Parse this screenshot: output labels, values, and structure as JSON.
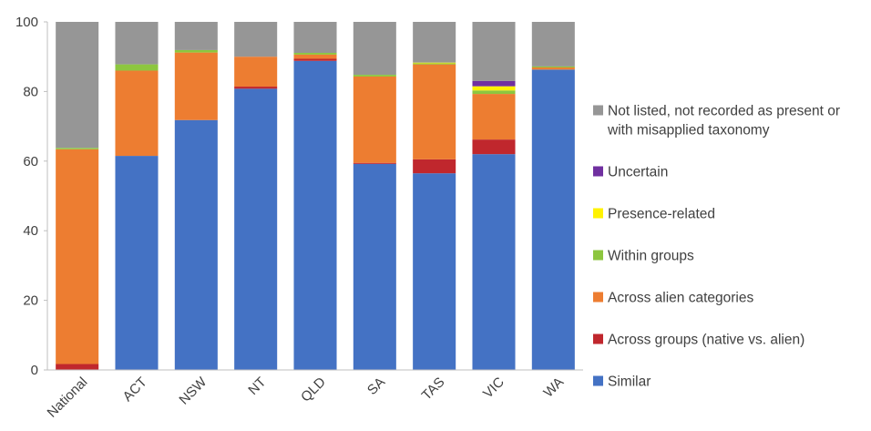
{
  "chart_data": {
    "type": "bar",
    "stacked": true,
    "categories": [
      "National",
      "ACT",
      "NSW",
      "NT",
      "QLD",
      "SA",
      "TAS",
      "VIC",
      "WA"
    ],
    "ylim": [
      0,
      100
    ],
    "yticks": [
      "0",
      "20",
      "40",
      "60",
      "80",
      "100"
    ],
    "grid": false,
    "legend_position": "right",
    "series": [
      {
        "name": "Similar",
        "color": "#4472C4",
        "values": [
          0,
          61.5,
          71.8,
          80.8,
          88.8,
          59.2,
          56.5,
          62.0,
          86.3
        ]
      },
      {
        "name": "Across groups (native vs. alien)",
        "color": "#C0272D",
        "values": [
          1.7,
          0,
          0,
          0.6,
          0.6,
          0.3,
          4.0,
          4.2,
          0
        ]
      },
      {
        "name": "Across alien categories",
        "color": "#ED7D31",
        "values": [
          61.7,
          24.5,
          19.4,
          8.6,
          1.2,
          24.8,
          27.3,
          13.1,
          0.6
        ]
      },
      {
        "name": "Within groups",
        "color": "#8DC63F",
        "values": [
          0.4,
          1.8,
          0.7,
          0,
          0.5,
          0.5,
          0.3,
          1.0,
          0.3
        ]
      },
      {
        "name": "Presence-related",
        "color": "#FFF200",
        "values": [
          0,
          0,
          0,
          0,
          0,
          0,
          0.2,
          1.2,
          0
        ]
      },
      {
        "name": "Uncertain",
        "color": "#7030A0",
        "values": [
          0,
          0,
          0,
          0,
          0,
          0,
          0,
          1.5,
          0
        ]
      },
      {
        "name": "Not listed, not recorded as present or with misapplied taxonomy",
        "color": "#969696",
        "values": [
          36.2,
          12.2,
          8.1,
          10.0,
          8.9,
          15.2,
          11.7,
          17.0,
          12.8
        ]
      }
    ],
    "legend": [
      {
        "lines": [
          "Not listed, not recorded as present or",
          "with misapplied taxonomy"
        ],
        "color": "#969696"
      },
      {
        "lines": [
          "Uncertain"
        ],
        "color": "#7030A0"
      },
      {
        "lines": [
          "Presence-related"
        ],
        "color": "#FFF200"
      },
      {
        "lines": [
          "Within groups"
        ],
        "color": "#8DC63F"
      },
      {
        "lines": [
          "Across alien categories"
        ],
        "color": "#ED7D31"
      },
      {
        "lines": [
          "Across groups (native vs. alien)"
        ],
        "color": "#C0272D"
      },
      {
        "lines": [
          "Similar"
        ],
        "color": "#4472C4"
      }
    ]
  }
}
